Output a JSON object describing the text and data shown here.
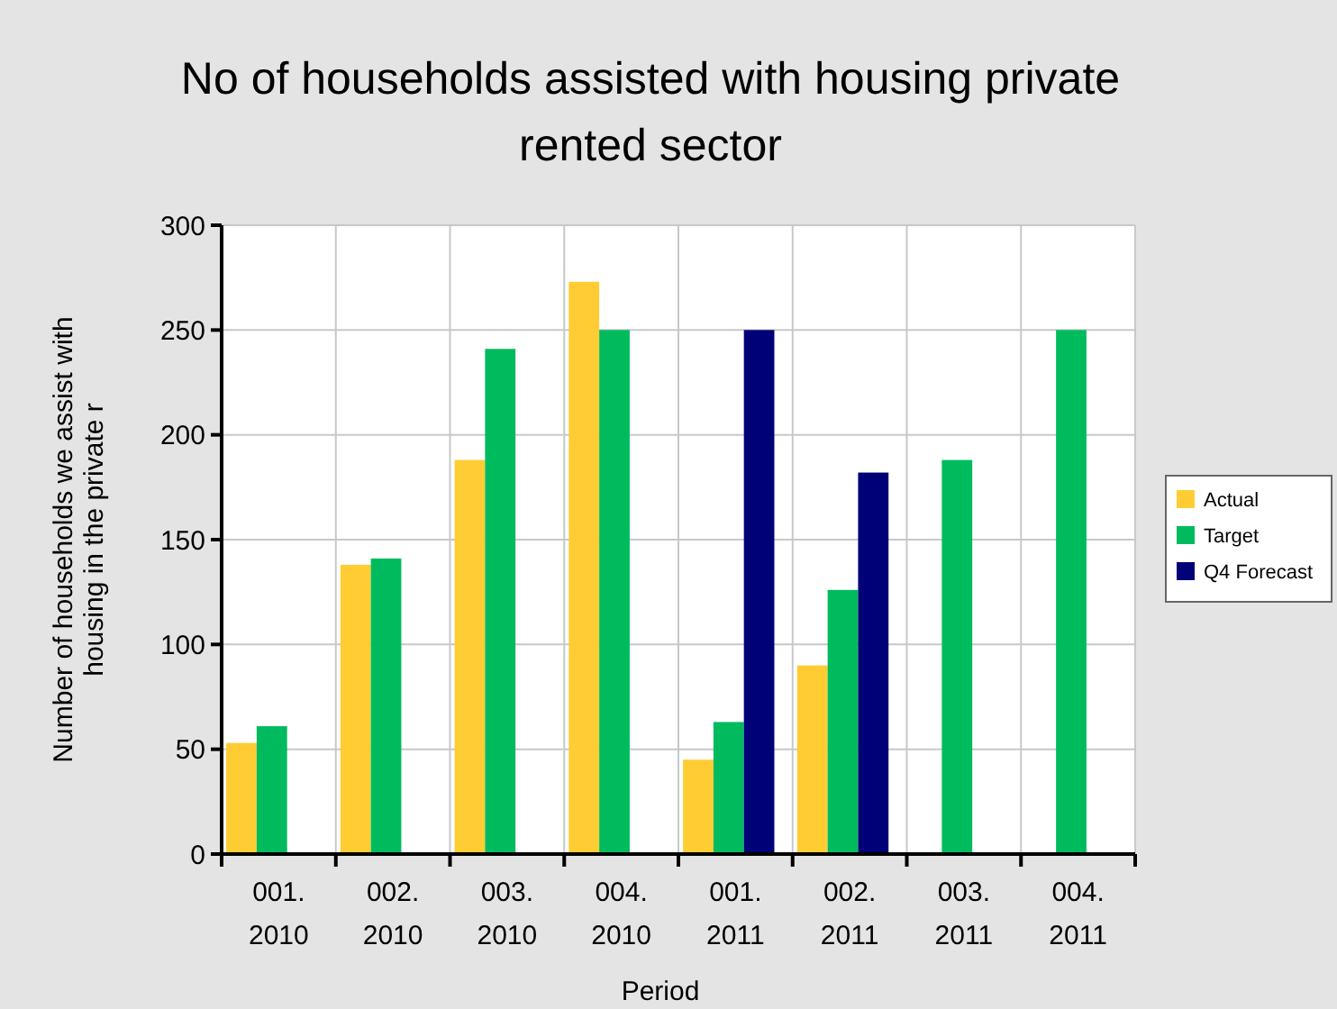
{
  "chart_data": {
    "type": "bar",
    "title": "No of households assisted with housing private rented sector",
    "xlabel": "Period",
    "ylabel": "Number of households we assist with housing in the private r",
    "categories": [
      "001. 2010",
      "002. 2010",
      "003. 2010",
      "004. 2010",
      "001. 2011",
      "002. 2011",
      "003. 2011",
      "004. 2011"
    ],
    "series": [
      {
        "name": "Actual",
        "color": "#ffcc33",
        "values": [
          53,
          138,
          188,
          273,
          45,
          90,
          null,
          null
        ]
      },
      {
        "name": "Target",
        "color": "#00bb5e",
        "values": [
          61,
          141,
          241,
          250,
          63,
          126,
          188,
          250
        ]
      },
      {
        "name": "Q4 Forecast",
        "color": "#000077",
        "values": [
          null,
          null,
          null,
          null,
          250,
          182,
          null,
          null
        ]
      }
    ],
    "ylim": [
      0,
      300
    ],
    "yticks": [
      0,
      50,
      100,
      150,
      200,
      250,
      300
    ],
    "grid": true,
    "legend": "right"
  }
}
